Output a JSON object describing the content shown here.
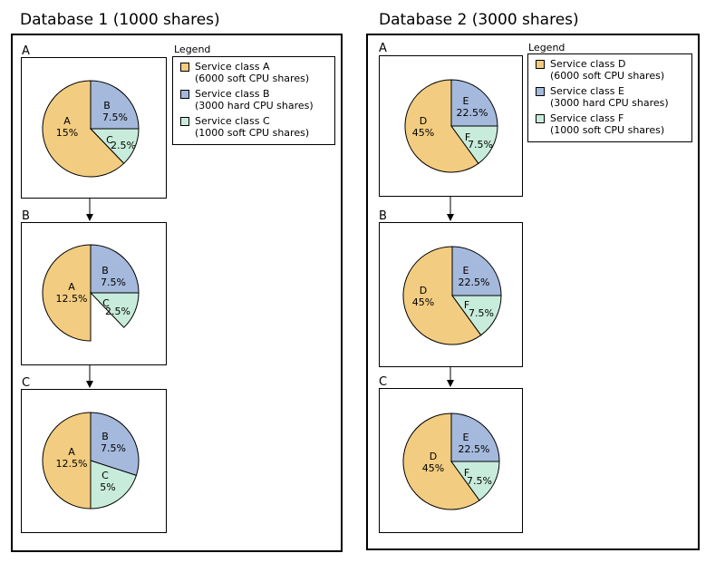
{
  "colors": {
    "slice_a": "#f2cc80",
    "slice_b": "#a5b9dc",
    "slice_c": "#c8ecdc"
  },
  "legend_title": "Legend",
  "databases": [
    {
      "title": "Database 1 (1000 shares)",
      "legend": [
        {
          "name": "Service class A",
          "detail": "(6000 soft CPU shares)"
        },
        {
          "name": "Service class B",
          "detail": "(3000 hard CPU shares)"
        },
        {
          "name": "Service class C",
          "detail": "(1000 soft CPU shares)"
        }
      ],
      "steps": [
        {
          "label": "A",
          "slices": [
            {
              "letter": "A",
              "value": "15%"
            },
            {
              "letter": "B",
              "value": "7.5%"
            },
            {
              "letter": "C",
              "value": "2.5%"
            }
          ]
        },
        {
          "label": "B",
          "slices": [
            {
              "letter": "A",
              "value": "12.5%"
            },
            {
              "letter": "B",
              "value": "7.5%"
            },
            {
              "letter": "C",
              "value": "2.5%"
            }
          ]
        },
        {
          "label": "C",
          "slices": [
            {
              "letter": "A",
              "value": "12.5%"
            },
            {
              "letter": "B",
              "value": "7.5%"
            },
            {
              "letter": "C",
              "value": "5%"
            }
          ]
        }
      ]
    },
    {
      "title": "Database 2 (3000 shares)",
      "legend": [
        {
          "name": "Service class D",
          "detail": "(6000 soft CPU shares)"
        },
        {
          "name": "Service class E",
          "detail": "(3000 hard CPU shares)"
        },
        {
          "name": "Service class F",
          "detail": "(1000 soft CPU shares)"
        }
      ],
      "steps": [
        {
          "label": "A",
          "slices": [
            {
              "letter": "D",
              "value": "45%"
            },
            {
              "letter": "E",
              "value": "22.5%"
            },
            {
              "letter": "F",
              "value": "7.5%"
            }
          ]
        },
        {
          "label": "B",
          "slices": [
            {
              "letter": "D",
              "value": "45%"
            },
            {
              "letter": "E",
              "value": "22.5%"
            },
            {
              "letter": "F",
              "value": "7.5%"
            }
          ]
        },
        {
          "label": "C",
          "slices": [
            {
              "letter": "D",
              "value": "45%"
            },
            {
              "letter": "E",
              "value": "22.5%"
            },
            {
              "letter": "F",
              "value": "7.5%"
            }
          ]
        }
      ]
    }
  ]
}
